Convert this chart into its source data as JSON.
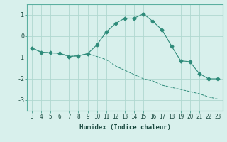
{
  "xlabel": "Humidex (Indice chaleur)",
  "x_ticks": [
    3,
    4,
    5,
    6,
    7,
    8,
    9,
    10,
    11,
    12,
    13,
    14,
    15,
    16,
    17,
    18,
    19,
    20,
    21,
    22,
    23
  ],
  "series1_x": [
    3,
    4,
    5,
    6,
    7,
    8,
    9,
    10,
    11,
    12,
    13,
    14,
    15,
    16,
    17,
    18,
    19,
    20,
    21,
    22,
    23
  ],
  "series1_y": [
    -0.55,
    -0.75,
    -0.78,
    -0.8,
    -0.95,
    -0.92,
    -0.82,
    -0.4,
    0.2,
    0.6,
    0.85,
    0.85,
    1.05,
    0.7,
    0.3,
    -0.45,
    -1.15,
    -1.2,
    -1.75,
    -2.0,
    -2.0
  ],
  "series2_x": [
    3,
    4,
    5,
    6,
    7,
    8,
    9,
    10,
    11,
    12,
    13,
    14,
    15,
    16,
    17,
    18,
    19,
    20,
    21,
    22,
    23
  ],
  "series2_y": [
    -0.55,
    -0.75,
    -0.78,
    -0.8,
    -0.95,
    -0.92,
    -0.82,
    -0.95,
    -1.1,
    -1.4,
    -1.6,
    -1.8,
    -2.0,
    -2.1,
    -2.3,
    -2.4,
    -2.5,
    -2.6,
    -2.7,
    -2.85,
    -2.95
  ],
  "line_color": "#2e8b7a",
  "bg_color": "#d8f0ec",
  "grid_color": "#b0d8d0",
  "ylim": [
    -3.5,
    1.5
  ],
  "yticks": [
    -3,
    -2,
    -1,
    0,
    1
  ],
  "marker": "D",
  "markersize": 2.5,
  "tick_fontsize": 5.5,
  "xlabel_fontsize": 6.5
}
